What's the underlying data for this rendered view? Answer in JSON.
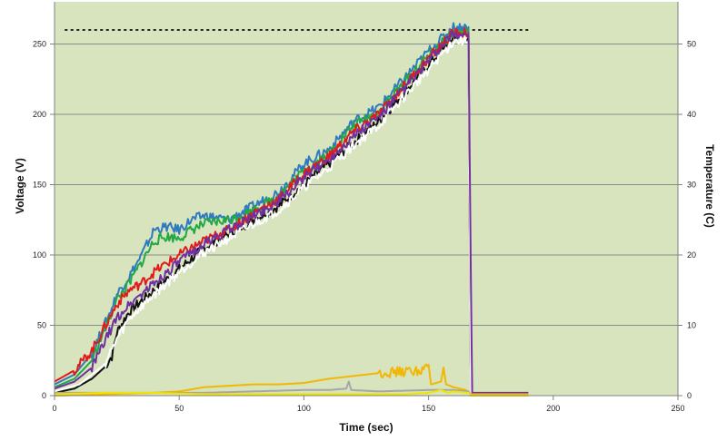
{
  "chart_data": {
    "type": "line",
    "title": "",
    "xlabel": "Time (sec)",
    "ylabel": "Voltage (V)",
    "y2label": "Temperature (C)",
    "xlim": [
      0,
      250
    ],
    "ylim": [
      0,
      280
    ],
    "y2lim": [
      0,
      56
    ],
    "x_ticks": [
      0,
      50,
      100,
      150,
      200,
      250
    ],
    "y_ticks": [
      0,
      50,
      100,
      150,
      200,
      250
    ],
    "y2_ticks": [
      0,
      10,
      20,
      30,
      40,
      50
    ],
    "grid": "horizontal",
    "plot_background": "#d7e4bd",
    "reference_line": {
      "y": 260,
      "x_range": [
        0,
        190
      ],
      "style": "dotted",
      "color": "#222222"
    },
    "series": [
      {
        "color": "#111111",
        "axis": "left",
        "points": [
          [
            0,
            2
          ],
          [
            8,
            5
          ],
          [
            15,
            12
          ],
          [
            20,
            20
          ],
          [
            23,
            28
          ],
          [
            25,
            45
          ],
          [
            30,
            60
          ],
          [
            40,
            75
          ],
          [
            50,
            90
          ],
          [
            60,
            105
          ],
          [
            70,
            115
          ],
          [
            80,
            125
          ],
          [
            90,
            135
          ],
          [
            100,
            150
          ],
          [
            110,
            165
          ],
          [
            120,
            180
          ],
          [
            130,
            195
          ],
          [
            140,
            215
          ],
          [
            150,
            235
          ],
          [
            160,
            255
          ],
          [
            166,
            255
          ],
          [
            167,
            0
          ],
          [
            190,
            0
          ]
        ]
      },
      {
        "color": "#2e7bbf",
        "axis": "left",
        "points": [
          [
            0,
            8
          ],
          [
            8,
            15
          ],
          [
            15,
            30
          ],
          [
            22,
            58
          ],
          [
            25,
            72
          ],
          [
            30,
            85
          ],
          [
            35,
            100
          ],
          [
            40,
            118
          ],
          [
            45,
            120
          ],
          [
            50,
            118
          ],
          [
            55,
            125
          ],
          [
            60,
            128
          ],
          [
            70,
            125
          ],
          [
            80,
            135
          ],
          [
            90,
            145
          ],
          [
            100,
            165
          ],
          [
            110,
            175
          ],
          [
            120,
            195
          ],
          [
            130,
            205
          ],
          [
            140,
            225
          ],
          [
            150,
            245
          ],
          [
            160,
            262
          ],
          [
            166,
            262
          ],
          [
            167,
            0
          ],
          [
            190,
            0
          ]
        ]
      },
      {
        "color": "#22a845",
        "axis": "left",
        "points": [
          [
            0,
            6
          ],
          [
            8,
            12
          ],
          [
            15,
            25
          ],
          [
            22,
            55
          ],
          [
            25,
            68
          ],
          [
            30,
            80
          ],
          [
            35,
            95
          ],
          [
            40,
            110
          ],
          [
            45,
            113
          ],
          [
            50,
            112
          ],
          [
            55,
            118
          ],
          [
            60,
            122
          ],
          [
            70,
            125
          ],
          [
            80,
            132
          ],
          [
            90,
            142
          ],
          [
            100,
            160
          ],
          [
            110,
            172
          ],
          [
            120,
            192
          ],
          [
            130,
            202
          ],
          [
            140,
            222
          ],
          [
            150,
            242
          ],
          [
            160,
            258
          ],
          [
            166,
            258
          ],
          [
            167,
            0
          ],
          [
            190,
            0
          ]
        ]
      },
      {
        "color": "#e31a1c",
        "axis": "left",
        "points": [
          [
            0,
            10
          ],
          [
            8,
            18
          ],
          [
            15,
            32
          ],
          [
            22,
            55
          ],
          [
            25,
            65
          ],
          [
            30,
            75
          ],
          [
            35,
            80
          ],
          [
            40,
            88
          ],
          [
            50,
            100
          ],
          [
            60,
            110
          ],
          [
            70,
            118
          ],
          [
            80,
            130
          ],
          [
            90,
            140
          ],
          [
            100,
            158
          ],
          [
            110,
            170
          ],
          [
            120,
            188
          ],
          [
            130,
            200
          ],
          [
            140,
            220
          ],
          [
            150,
            240
          ],
          [
            160,
            258
          ],
          [
            166,
            258
          ],
          [
            167,
            0
          ],
          [
            190,
            0
          ]
        ]
      },
      {
        "color": "#ffffff",
        "axis": "left",
        "points": [
          [
            0,
            3
          ],
          [
            10,
            8
          ],
          [
            20,
            22
          ],
          [
            25,
            40
          ],
          [
            30,
            55
          ],
          [
            40,
            72
          ],
          [
            50,
            88
          ],
          [
            60,
            102
          ],
          [
            70,
            112
          ],
          [
            80,
            122
          ],
          [
            90,
            132
          ],
          [
            100,
            148
          ],
          [
            110,
            162
          ],
          [
            120,
            178
          ],
          [
            130,
            192
          ],
          [
            140,
            212
          ],
          [
            150,
            232
          ],
          [
            160,
            252
          ],
          [
            166,
            252
          ],
          [
            167,
            0
          ],
          [
            190,
            0
          ]
        ]
      },
      {
        "color": "#7030a0",
        "axis": "left",
        "points": [
          [
            0,
            5
          ],
          [
            8,
            10
          ],
          [
            15,
            20
          ],
          [
            22,
            45
          ],
          [
            25,
            55
          ],
          [
            30,
            65
          ],
          [
            40,
            80
          ],
          [
            50,
            95
          ],
          [
            60,
            108
          ],
          [
            70,
            118
          ],
          [
            80,
            128
          ],
          [
            90,
            138
          ],
          [
            100,
            155
          ],
          [
            110,
            168
          ],
          [
            120,
            185
          ],
          [
            130,
            198
          ],
          [
            140,
            218
          ],
          [
            150,
            238
          ],
          [
            160,
            257
          ],
          [
            166,
            257
          ],
          [
            167,
            80
          ],
          [
            167.5,
            2
          ],
          [
            190,
            2
          ]
        ]
      },
      {
        "color": "#f2b705",
        "axis": "left",
        "points": [
          [
            0,
            0
          ],
          [
            20,
            1
          ],
          [
            40,
            2
          ],
          [
            50,
            3
          ],
          [
            60,
            6
          ],
          [
            70,
            7
          ],
          [
            80,
            8
          ],
          [
            90,
            8
          ],
          [
            100,
            9
          ],
          [
            110,
            12
          ],
          [
            120,
            14
          ],
          [
            130,
            16
          ],
          [
            140,
            17
          ],
          [
            148,
            18
          ],
          [
            150,
            22
          ],
          [
            151,
            8
          ],
          [
            155,
            10
          ],
          [
            156,
            20
          ],
          [
            157,
            8
          ],
          [
            160,
            6
          ],
          [
            165,
            4
          ],
          [
            167,
            1
          ],
          [
            190,
            1
          ]
        ]
      },
      {
        "color": "#a6a6a6",
        "axis": "left",
        "points": [
          [
            0,
            2
          ],
          [
            40,
            2
          ],
          [
            60,
            2
          ],
          [
            80,
            3
          ],
          [
            100,
            4
          ],
          [
            110,
            4
          ],
          [
            117,
            5
          ],
          [
            118,
            10
          ],
          [
            119,
            4
          ],
          [
            130,
            3
          ],
          [
            150,
            4
          ],
          [
            160,
            4
          ],
          [
            166,
            3
          ],
          [
            167,
            0
          ],
          [
            190,
            0
          ]
        ]
      },
      {
        "color": "#f2e400",
        "axis": "left",
        "points": [
          [
            0,
            1
          ],
          [
            20,
            2
          ],
          [
            40,
            2
          ],
          [
            60,
            1
          ],
          [
            80,
            1
          ],
          [
            100,
            1
          ],
          [
            120,
            1
          ],
          [
            140,
            1
          ],
          [
            150,
            2
          ],
          [
            155,
            4
          ],
          [
            158,
            2
          ],
          [
            160,
            3
          ],
          [
            166,
            2
          ],
          [
            167,
            0
          ],
          [
            190,
            0
          ]
        ]
      }
    ]
  }
}
